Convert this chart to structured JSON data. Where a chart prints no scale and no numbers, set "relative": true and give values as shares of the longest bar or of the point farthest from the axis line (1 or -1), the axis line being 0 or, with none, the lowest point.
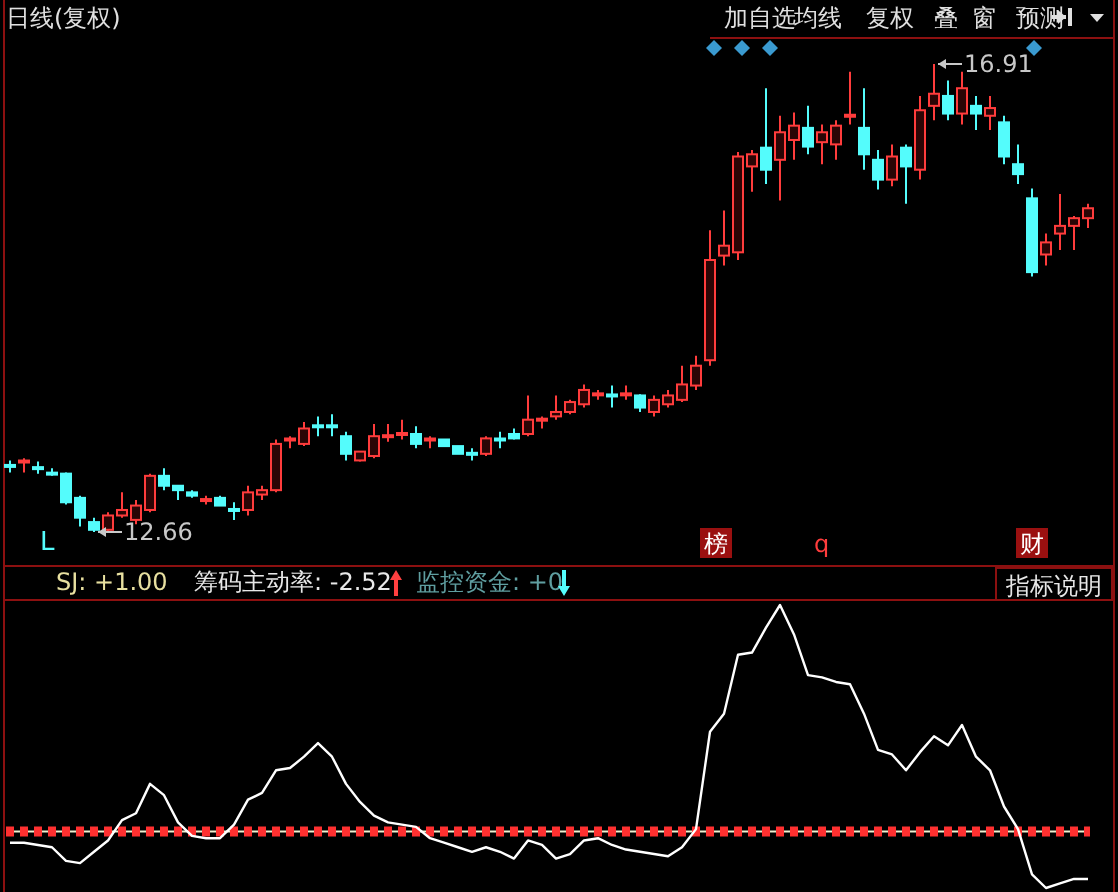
{
  "chart_data": [
    {
      "type": "candlestick",
      "title": "日线(复权)",
      "categories": [
        null,
        null,
        null,
        null,
        null,
        null,
        null,
        null,
        null,
        null,
        null,
        null,
        null,
        null,
        null,
        null,
        null,
        null,
        null,
        null,
        null,
        null,
        null,
        null,
        null,
        null,
        null,
        null,
        null,
        null,
        null,
        null,
        null,
        null,
        null,
        null,
        null,
        null,
        null,
        null,
        null,
        null,
        null,
        null,
        null,
        null,
        null,
        null,
        null,
        null,
        null,
        null,
        null,
        null,
        null,
        null,
        null,
        null,
        null,
        null,
        null,
        null,
        null,
        null,
        null,
        null,
        null,
        null,
        null,
        null,
        null,
        null,
        null,
        null,
        null,
        null,
        null,
        null
      ],
      "ohlc": [
        [
          13.26,
          13.31,
          13.2,
          13.26
        ],
        [
          13.3,
          13.33,
          13.2,
          13.3
        ],
        [
          13.24,
          13.3,
          13.19,
          13.24
        ],
        [
          13.19,
          13.24,
          13.17,
          13.19
        ],
        [
          13.19,
          13.2,
          12.91,
          12.93
        ],
        [
          12.97,
          12.99,
          12.71,
          12.79
        ],
        [
          12.75,
          12.79,
          12.66,
          12.68
        ],
        [
          12.68,
          12.84,
          12.66,
          12.81
        ],
        [
          12.81,
          13.02,
          12.79,
          12.86
        ],
        [
          12.77,
          12.95,
          12.73,
          12.9
        ],
        [
          12.86,
          13.19,
          12.84,
          13.17
        ],
        [
          13.17,
          13.24,
          13.04,
          13.08
        ],
        [
          13.08,
          13.08,
          12.95,
          13.04
        ],
        [
          13.02,
          13.04,
          12.97,
          12.99
        ],
        [
          12.95,
          12.99,
          12.91,
          12.95
        ],
        [
          12.97,
          12.99,
          12.9,
          12.9
        ],
        [
          12.86,
          12.93,
          12.77,
          12.86
        ],
        [
          12.86,
          13.08,
          12.81,
          13.02
        ],
        [
          13.0,
          13.08,
          12.95,
          13.04
        ],
        [
          13.04,
          13.5,
          13.02,
          13.46
        ],
        [
          13.5,
          13.53,
          13.42,
          13.5
        ],
        [
          13.46,
          13.66,
          13.44,
          13.6
        ],
        [
          13.62,
          13.71,
          13.53,
          13.62
        ],
        [
          13.62,
          13.73,
          13.53,
          13.62
        ],
        [
          13.53,
          13.57,
          13.31,
          13.37
        ],
        [
          13.31,
          13.39,
          13.3,
          13.39
        ],
        [
          13.35,
          13.64,
          13.33,
          13.53
        ],
        [
          13.53,
          13.64,
          13.48,
          13.53
        ],
        [
          13.55,
          13.68,
          13.5,
          13.55
        ],
        [
          13.55,
          13.62,
          13.42,
          13.46
        ],
        [
          13.5,
          13.53,
          13.42,
          13.5
        ],
        [
          13.5,
          13.5,
          13.44,
          13.44
        ],
        [
          13.44,
          13.44,
          13.37,
          13.37
        ],
        [
          13.37,
          13.42,
          13.31,
          13.37
        ],
        [
          13.37,
          13.53,
          13.35,
          13.51
        ],
        [
          13.5,
          13.57,
          13.42,
          13.5
        ],
        [
          13.55,
          13.6,
          13.5,
          13.51
        ],
        [
          13.55,
          13.9,
          13.53,
          13.68
        ],
        [
          13.68,
          13.71,
          13.6,
          13.68
        ],
        [
          13.71,
          13.9,
          13.68,
          13.75
        ],
        [
          13.75,
          13.86,
          13.73,
          13.84
        ],
        [
          13.82,
          14.0,
          13.79,
          13.95
        ],
        [
          13.91,
          13.95,
          13.86,
          13.91
        ],
        [
          13.9,
          13.99,
          13.79,
          13.9
        ],
        [
          13.91,
          13.99,
          13.86,
          13.91
        ],
        [
          13.9,
          13.91,
          13.75,
          13.79
        ],
        [
          13.75,
          13.9,
          13.71,
          13.86
        ],
        [
          13.82,
          13.95,
          13.79,
          13.9
        ],
        [
          13.86,
          14.17,
          13.84,
          14.0
        ],
        [
          13.99,
          14.26,
          13.95,
          14.17
        ],
        [
          14.22,
          15.4,
          14.17,
          15.13
        ],
        [
          15.17,
          15.58,
          15.08,
          15.26
        ],
        [
          15.2,
          16.11,
          15.13,
          16.07
        ],
        [
          15.98,
          16.13,
          15.75,
          16.09
        ],
        [
          16.15,
          16.69,
          15.82,
          15.95
        ],
        [
          16.04,
          16.44,
          15.67,
          16.29
        ],
        [
          16.22,
          16.47,
          16.04,
          16.35
        ],
        [
          16.33,
          16.53,
          16.09,
          16.16
        ],
        [
          16.2,
          16.36,
          16.0,
          16.29
        ],
        [
          16.18,
          16.4,
          16.04,
          16.35
        ],
        [
          16.44,
          16.84,
          16.36,
          16.44
        ],
        [
          16.33,
          16.69,
          15.95,
          16.09
        ],
        [
          16.04,
          16.13,
          15.77,
          15.86
        ],
        [
          15.86,
          16.18,
          15.8,
          16.07
        ],
        [
          16.15,
          16.18,
          15.64,
          15.98
        ],
        [
          15.95,
          16.62,
          15.86,
          16.49
        ],
        [
          16.53,
          16.91,
          16.4,
          16.64
        ],
        [
          16.62,
          16.76,
          16.4,
          16.46
        ],
        [
          16.46,
          16.84,
          16.36,
          16.69
        ],
        [
          16.53,
          16.62,
          16.31,
          16.46
        ],
        [
          16.44,
          16.62,
          16.31,
          16.51
        ],
        [
          16.38,
          16.44,
          16.0,
          16.07
        ],
        [
          16.0,
          16.18,
          15.82,
          15.91
        ],
        [
          15.69,
          15.78,
          14.98,
          15.02
        ],
        [
          15.18,
          15.37,
          15.08,
          15.29
        ],
        [
          15.37,
          15.73,
          15.22,
          15.44
        ],
        [
          15.44,
          15.53,
          15.22,
          15.51
        ],
        [
          15.51,
          15.64,
          15.42,
          15.6
        ]
      ],
      "colors": [
        "#54fcfc",
        "#ff3c3c",
        "#54fcfc",
        "#54fcfc",
        "#54fcfc",
        "#54fcfc",
        "#54fcfc",
        "#ff3c3c",
        "#ff3c3c",
        "#ff3c3c",
        "#ff3c3c",
        "#54fcfc",
        "#54fcfc",
        "#54fcfc",
        "#ff3c3c",
        "#54fcfc",
        "#54fcfc",
        "#ff3c3c",
        "#ff3c3c",
        "#ff3c3c",
        "#ff3c3c",
        "#ff3c3c",
        "#54fcfc",
        "#54fcfc",
        "#54fcfc",
        "#ff3c3c",
        "#ff3c3c",
        "#ff3c3c",
        "#ff3c3c",
        "#54fcfc",
        "#ff3c3c",
        "#54fcfc",
        "#54fcfc",
        "#54fcfc",
        "#ff3c3c",
        "#54fcfc",
        "#54fcfc",
        "#ff3c3c",
        "#ff3c3c",
        "#ff3c3c",
        "#ff3c3c",
        "#ff3c3c",
        "#ff3c3c",
        "#54fcfc",
        "#ff3c3c",
        "#54fcfc",
        "#ff3c3c",
        "#ff3c3c",
        "#ff3c3c",
        "#ff3c3c",
        "#ff3c3c",
        "#ff3c3c",
        "#ff3c3c",
        "#ff3c3c",
        "#54fcfc",
        "#ff3c3c",
        "#ff3c3c",
        "#54fcfc",
        "#ff3c3c",
        "#ff3c3c",
        "#ff3c3c",
        "#54fcfc",
        "#54fcfc",
        "#ff3c3c",
        "#54fcfc",
        "#ff3c3c",
        "#ff3c3c",
        "#54fcfc",
        "#ff3c3c",
        "#54fcfc",
        "#ff3c3c",
        "#54fcfc",
        "#54fcfc",
        "#54fcfc",
        "#ff3c3c",
        "#ff3c3c",
        "#ff3c3c",
        "#ff3c3c"
      ],
      "annotations": [
        "16.91",
        "12.66",
        "L",
        "榜",
        "q",
        "财",
        "加自选",
        "均线",
        "复权",
        "叠",
        "窗",
        "预测"
      ]
    },
    {
      "type": "line",
      "relative": true,
      "categories": [
        null,
        null,
        null,
        null,
        null,
        null,
        null,
        null,
        null,
        null,
        null,
        null,
        null,
        null,
        null,
        null,
        null,
        null,
        null,
        null,
        null,
        null,
        null,
        null,
        null,
        null,
        null,
        null,
        null,
        null,
        null,
        null,
        null,
        null,
        null,
        null,
        null,
        null,
        null,
        null,
        null,
        null,
        null,
        null,
        null,
        null,
        null,
        null,
        null,
        null,
        null,
        null,
        null,
        null,
        null,
        null,
        null,
        null,
        null,
        null,
        null,
        null,
        null,
        null,
        null,
        null,
        null,
        null,
        null,
        null,
        null,
        null,
        null,
        null,
        null,
        null,
        null,
        null
      ],
      "series": [
        {
          "color": "#ffffff",
          "values": [
            -0.05,
            -0.05,
            -0.06,
            -0.07,
            -0.13,
            -0.14,
            -0.09,
            -0.04,
            0.05,
            0.08,
            0.21,
            0.16,
            0.04,
            -0.02,
            -0.03,
            -0.03,
            0.03,
            0.14,
            0.17,
            0.27,
            0.28,
            0.33,
            0.39,
            0.33,
            0.21,
            0.13,
            0.07,
            0.04,
            0.03,
            0.02,
            -0.03,
            -0.05,
            -0.07,
            -0.09,
            -0.07,
            -0.09,
            -0.12,
            -0.04,
            -0.06,
            -0.12,
            -0.1,
            -0.04,
            -0.03,
            -0.06,
            -0.08,
            -0.09,
            -0.1,
            -0.11,
            -0.07,
            0.01,
            0.44,
            0.52,
            0.78,
            0.79,
            0.9,
            1.0,
            0.87,
            0.69,
            0.68,
            0.66,
            0.65,
            0.52,
            0.36,
            0.34,
            0.27,
            0.35,
            0.42,
            0.38,
            0.47,
            0.33,
            0.27,
            0.11,
            0.01,
            -0.19,
            -0.25,
            -0.23,
            -0.21,
            -0.21
          ]
        }
      ],
      "ref_lines": [
        {
          "axis": "y",
          "value": 0,
          "color": "#ff3030",
          "line_style": "dashed"
        }
      ],
      "annotations": [
        "SJ: +1.00",
        "筹码主动率: -2.52",
        "监控资金: +0",
        "指标说明"
      ]
    }
  ]
}
